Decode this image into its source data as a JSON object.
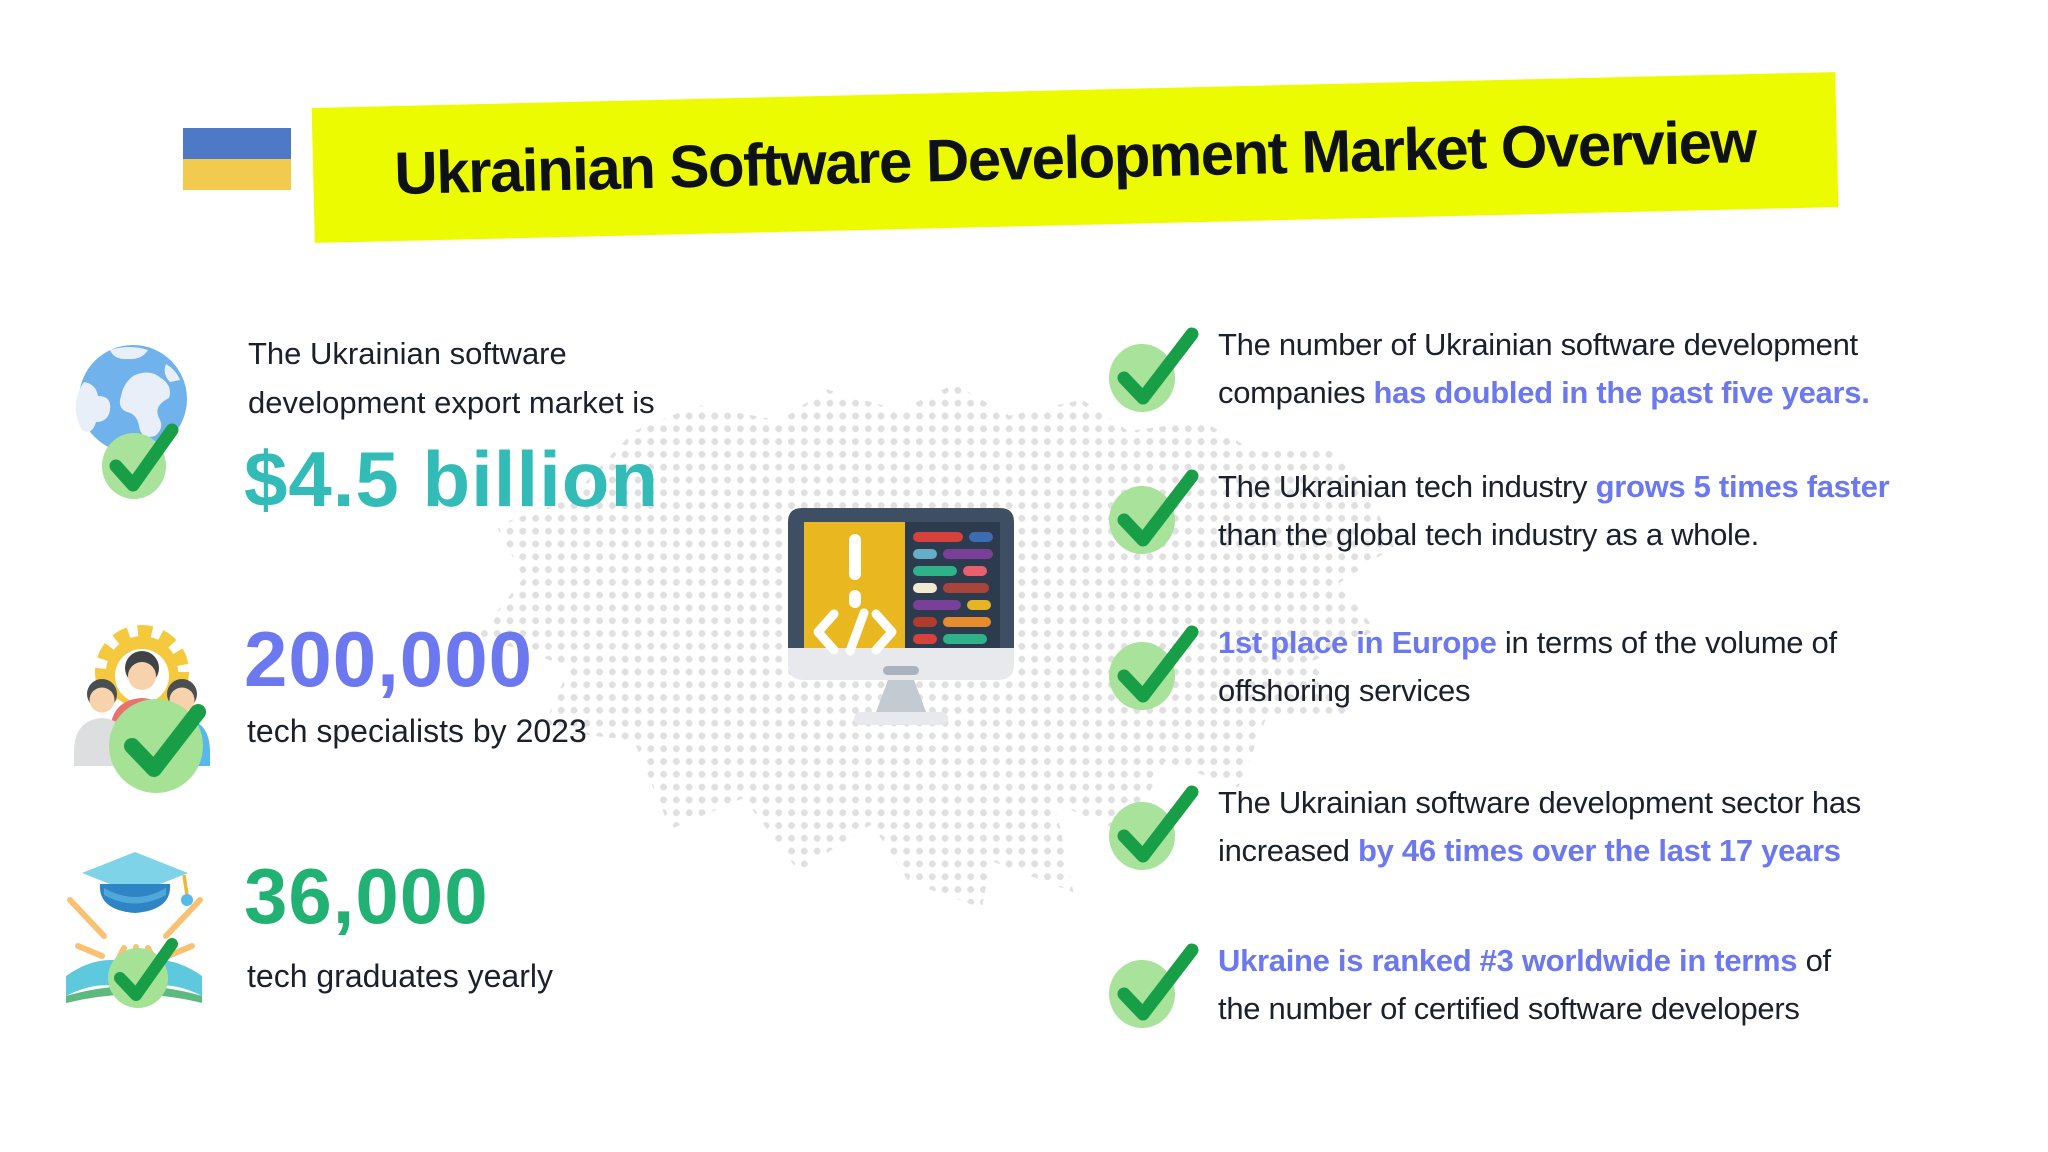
{
  "header": {
    "title": "Ukrainian Software Development Market Overview",
    "flag": "ukraine-flag",
    "banner_color": "#edfb00",
    "flag_blue": "#4e79c6",
    "flag_yellow": "#f2ca4d"
  },
  "stats": [
    {
      "icon": "globe-check",
      "label": "The Ukrainian software\ndevelopment export market is",
      "value": "$4.5 billion",
      "value_color": "#33bcb7",
      "sublabel": ""
    },
    {
      "icon": "team-gear-check",
      "label": "",
      "value": "200,000",
      "value_color": "#6b78ef",
      "sublabel": "tech specialists by 2023"
    },
    {
      "icon": "graduation-check",
      "label": "",
      "value": "36,000",
      "value_color": "#21b173",
      "sublabel": "tech graduates yearly"
    }
  ],
  "facts": [
    {
      "segments": [
        {
          "t": "The number of Ukrainian software development\ncompanies ",
          "b": false
        },
        {
          "t": "has doubled in the past five years.",
          "b": true
        }
      ]
    },
    {
      "segments": [
        {
          "t": "The Ukrainian tech industry ",
          "b": false
        },
        {
          "t": "grows 5 times faster",
          "b": true
        },
        {
          "t": "\nthan the global tech industry as a whole.",
          "b": false
        }
      ]
    },
    {
      "segments": [
        {
          "t": "1st place in Europe",
          "b": true
        },
        {
          "t": " in terms of the volume of\noffshoring services",
          "b": false
        }
      ]
    },
    {
      "segments": [
        {
          "t": "The Ukrainian software development sector has\nincreased ",
          "b": false
        },
        {
          "t": "by 46 times over the last 17 years",
          "b": true
        }
      ]
    },
    {
      "segments": [
        {
          "t": "Ukraine is ranked #3 worldwide in terms",
          "b": true
        },
        {
          "t": " of\nthe number of certified software developers",
          "b": false
        }
      ]
    }
  ],
  "palette": {
    "highlight": "#6b78ef",
    "teal": "#33bcb7",
    "purple": "#6b78ef",
    "green": "#21b173",
    "check_green": "#189e46",
    "check_light": "#a8e29b",
    "dot_gray": "#e0e0e0",
    "text_dark": "#1a202c"
  }
}
